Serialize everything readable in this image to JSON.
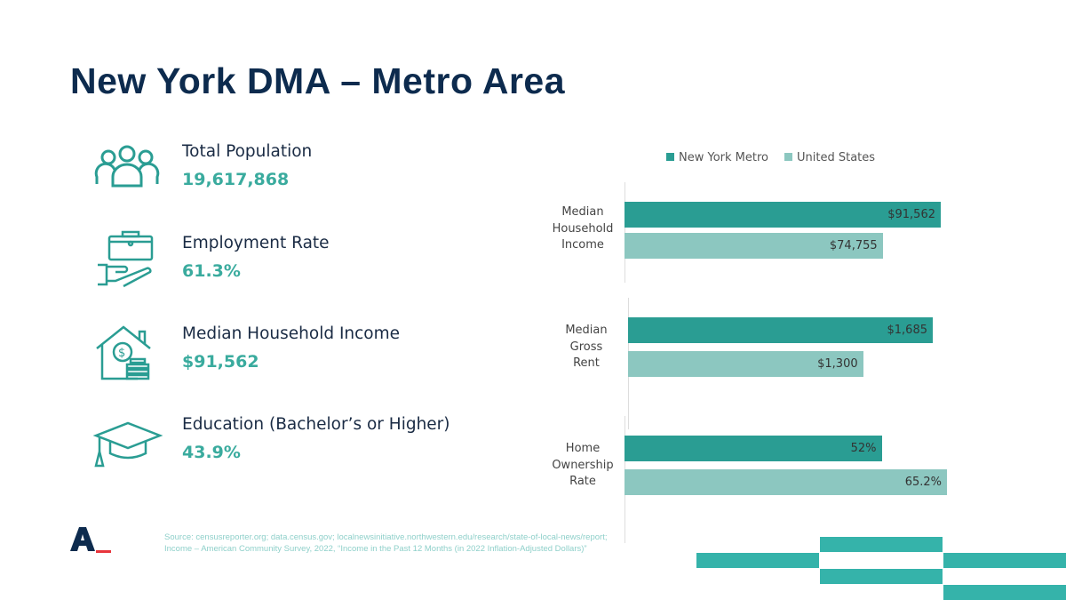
{
  "title": "New York DMA – Metro Area",
  "stats": [
    {
      "label": "Total Population",
      "value": "19,617,868",
      "icon": "people-group-icon"
    },
    {
      "label": "Employment Rate",
      "value": "61.3%",
      "icon": "briefcase-hand-icon"
    },
    {
      "label": "Median Household Income",
      "value": "$91,562",
      "icon": "house-dollar-icon"
    },
    {
      "label": "Education (Bachelor’s or Higher)",
      "value": "43.9%",
      "icon": "graduation-cap-icon"
    }
  ],
  "colors": {
    "navy": "#0d2b4e",
    "teal": "#3aab9e",
    "ny": "#2a9d93",
    "us": "#8cc7c0"
  },
  "chart_data": {
    "type": "bar",
    "orientation": "horizontal",
    "legend": [
      "New York Metro",
      "United States"
    ],
    "legend_position": "top",
    "groups": [
      {
        "category": "Median Household Income",
        "values": [
          91562,
          74755
        ],
        "labels": [
          "$91,562",
          "$74,755"
        ]
      },
      {
        "category": "Median Gross Rent",
        "values": [
          1685,
          1300
        ],
        "labels": [
          "$1,685",
          "$1,300"
        ]
      },
      {
        "category": "Home Ownership Rate",
        "values": [
          52,
          65.2
        ],
        "labels": [
          "52%",
          "65.2%"
        ]
      }
    ]
  },
  "source": {
    "line1": "Source: censusreporter.org; data.census.gov; localnewsinitiative.northwestern.edu/research/state-of-local-news/report;",
    "line2": "Income – American Community Survey, 2022, “Income in the Past 12 Months (in 2022 Inflation-Adjusted Dollars)”"
  },
  "logo": "A_"
}
